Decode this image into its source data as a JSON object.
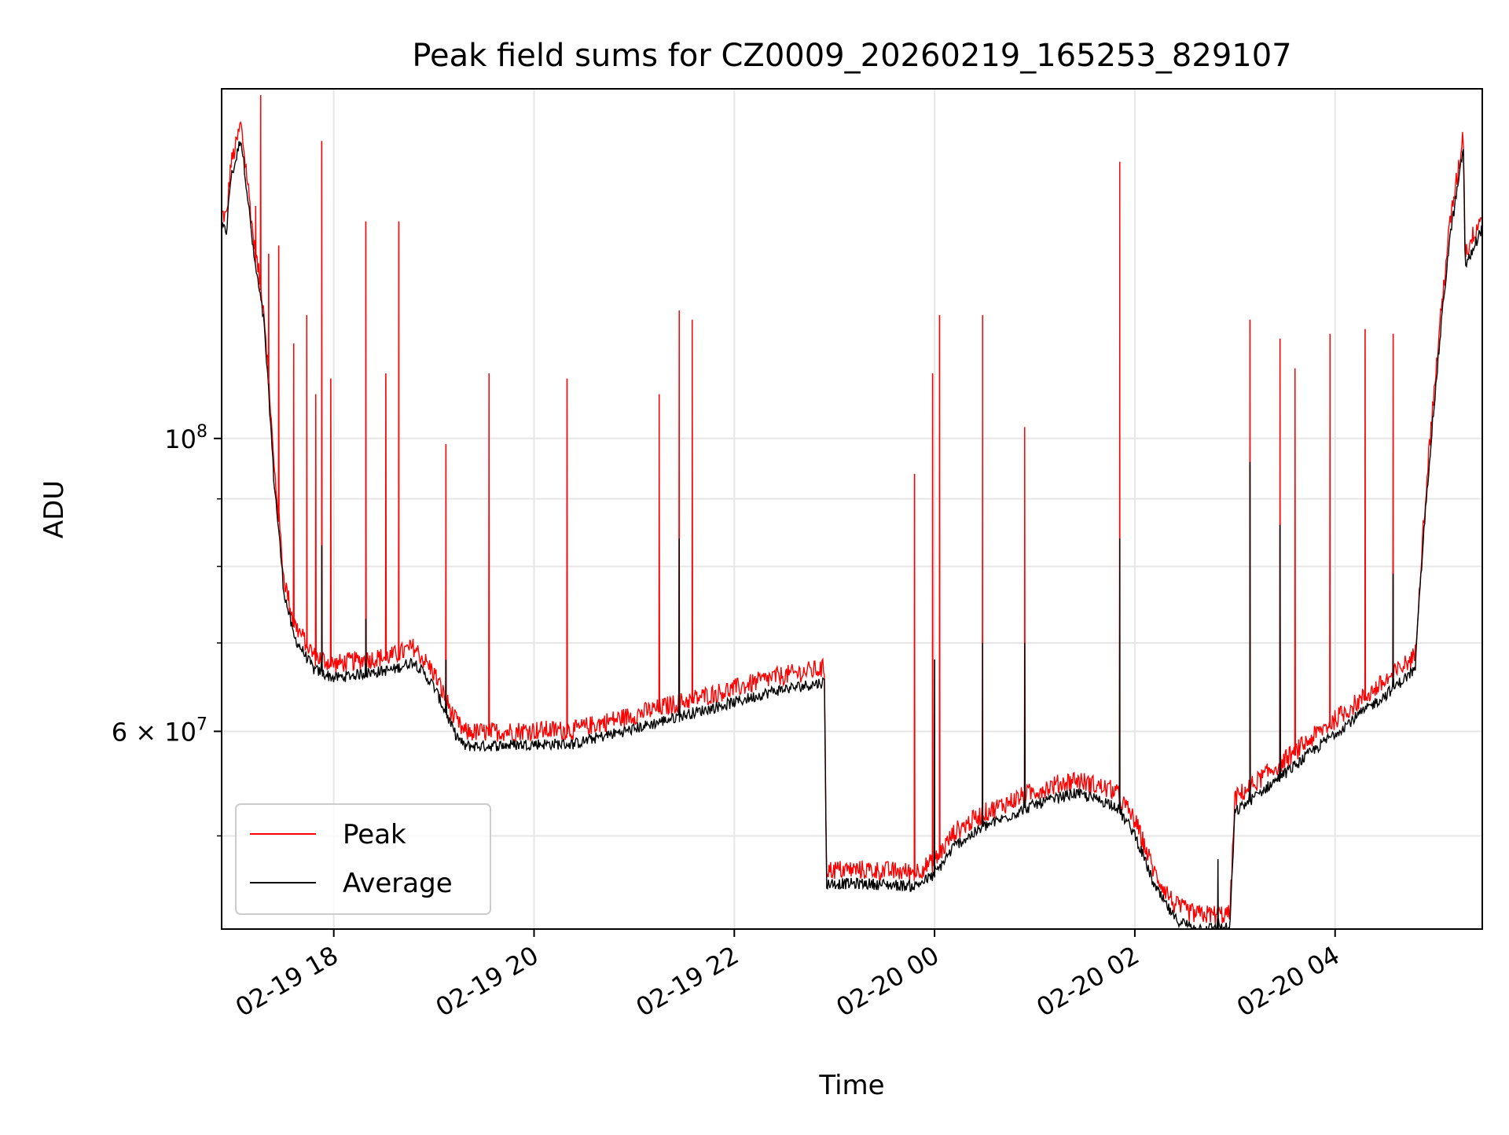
{
  "chart_data": {
    "type": "line",
    "title": "Peak field sums for CZ0009_20260219_165253_829107",
    "xlabel": "Time",
    "ylabel": "ADU",
    "yscale": "log",
    "xlim_hours": [
      16.88,
      29.47
    ],
    "ylim": [
      42500000,
      184000000
    ],
    "grid": true,
    "legend_position": "lower-left",
    "x_ticks": [
      {
        "hour": 18,
        "label": "02-19 18"
      },
      {
        "hour": 20,
        "label": "02-19 20"
      },
      {
        "hour": 22,
        "label": "02-19 22"
      },
      {
        "hour": 24,
        "label": "02-20 00"
      },
      {
        "hour": 26,
        "label": "02-20 02"
      },
      {
        "hour": 28,
        "label": "02-20 04"
      }
    ],
    "y_major_ticks": [
      {
        "value": 60000000,
        "label_base": "6 × 10",
        "label_exp": "7"
      },
      {
        "value": 100000000,
        "label_base": "10",
        "label_exp": "8"
      }
    ],
    "y_minor_ticks": [
      50000000,
      70000000,
      80000000,
      90000000
    ],
    "series": [
      {
        "name": "Peak",
        "color": "#ff0000",
        "baseline": [
          [
            16.88,
            147000000.0
          ],
          [
            16.93,
            146000000.0
          ],
          [
            16.97,
            160000000.0
          ],
          [
            17.02,
            165000000.0
          ],
          [
            17.07,
            172000000.0
          ],
          [
            17.12,
            160000000.0
          ],
          [
            17.2,
            140000000.0
          ],
          [
            17.3,
            125000000.0
          ],
          [
            17.4,
            95000000.0
          ],
          [
            17.5,
            78000000.0
          ],
          [
            17.6,
            72000000.0
          ],
          [
            17.8,
            68000000.0
          ],
          [
            18.0,
            67000000.0
          ],
          [
            18.3,
            67500000.0
          ],
          [
            18.6,
            68000000.0
          ],
          [
            18.8,
            69000000.0
          ],
          [
            19.0,
            66000000.0
          ],
          [
            19.2,
            61000000.0
          ],
          [
            19.3,
            59500000.0
          ],
          [
            19.5,
            59500000.0
          ],
          [
            20.0,
            59700000.0
          ],
          [
            20.4,
            59700000.0
          ],
          [
            20.6,
            60300000.0
          ],
          [
            21.0,
            61300000.0
          ],
          [
            21.5,
            62800000.0
          ],
          [
            22.0,
            64200000.0
          ],
          [
            22.4,
            65500000.0
          ],
          [
            22.9,
            66500000.0
          ],
          [
            22.92,
            46800000.0
          ],
          [
            23.3,
            46800000.0
          ],
          [
            23.8,
            46600000.0
          ],
          [
            24.0,
            47500000.0
          ],
          [
            24.2,
            50000000.0
          ],
          [
            24.5,
            51700000.0
          ],
          [
            24.7,
            52500000.0
          ],
          [
            25.0,
            53700000.0
          ],
          [
            25.4,
            54800000.0
          ],
          [
            25.8,
            53700000.0
          ],
          [
            26.0,
            51000000.0
          ],
          [
            26.2,
            46500000.0
          ],
          [
            26.4,
            44000000.0
          ],
          [
            26.6,
            43300000.0
          ],
          [
            26.8,
            43300000.0
          ],
          [
            26.95,
            43300000.0
          ],
          [
            27.0,
            53000000.0
          ],
          [
            27.3,
            55200000.0
          ],
          [
            27.6,
            57500000.0
          ],
          [
            27.9,
            60000000.0
          ],
          [
            28.2,
            62500000.0
          ],
          [
            28.5,
            65000000.0
          ],
          [
            28.8,
            68000000.0
          ],
          [
            29.0,
            110000000.0
          ],
          [
            29.15,
            145000000.0
          ],
          [
            29.25,
            162000000.0
          ],
          [
            29.28,
            170000000.0
          ],
          [
            29.3,
            137000000.0
          ],
          [
            29.47,
            147000000.0
          ]
        ],
        "spikes": [
          [
            17.27,
            182000000.0
          ],
          [
            17.22,
            150000000.0
          ],
          [
            17.35,
            138000000.0
          ],
          [
            17.45,
            140000000.0
          ],
          [
            17.6,
            118000000.0
          ],
          [
            17.73,
            124000000.0
          ],
          [
            17.82,
            108000000.0
          ],
          [
            17.88,
            168000000.0
          ],
          [
            17.97,
            111000000.0
          ],
          [
            18.32,
            146000000.0
          ],
          [
            18.52,
            112000000.0
          ],
          [
            18.65,
            146000000.0
          ],
          [
            19.12,
            99000000.0
          ],
          [
            19.55,
            112000000.0
          ],
          [
            20.33,
            111000000.0
          ],
          [
            21.25,
            108000000.0
          ],
          [
            21.45,
            125000000.0
          ],
          [
            21.58,
            123000000.0
          ],
          [
            23.8,
            94000000.0
          ],
          [
            23.98,
            112000000.0
          ],
          [
            24.05,
            124000000.0
          ],
          [
            24.48,
            124000000.0
          ],
          [
            24.9,
            102000000.0
          ],
          [
            25.85,
            162000000.0
          ],
          [
            27.15,
            123000000.0
          ],
          [
            27.45,
            119000000.0
          ],
          [
            27.6,
            113000000.0
          ],
          [
            27.95,
            120000000.0
          ],
          [
            28.3,
            121000000.0
          ],
          [
            28.58,
            120000000.0
          ]
        ]
      },
      {
        "name": "Average",
        "color": "#000000",
        "offset_factor": 0.985,
        "spikes": [
          [
            17.88,
            83000000.0
          ],
          [
            18.32,
            73000000.0
          ],
          [
            19.12,
            68000000.0
          ],
          [
            21.45,
            84000000.0
          ],
          [
            24.0,
            68000000.0
          ],
          [
            24.48,
            70000000.0
          ],
          [
            24.9,
            70000000.0
          ],
          [
            25.85,
            84000000.0
          ],
          [
            26.83,
            48000000.0
          ],
          [
            27.15,
            96000000.0
          ],
          [
            27.45,
            86000000.0
          ],
          [
            28.58,
            79000000.0
          ]
        ]
      }
    ]
  }
}
